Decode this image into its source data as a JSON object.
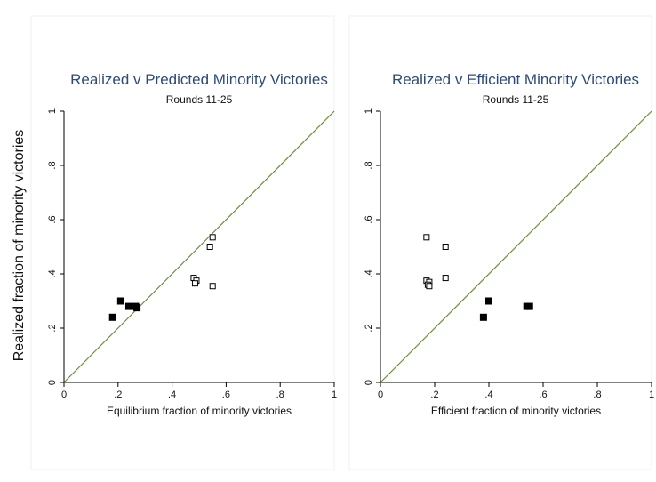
{
  "figure": {
    "ylabel": "Realized fraction of minority victories"
  },
  "chart_data": [
    {
      "type": "scatter",
      "title": "Realized v Predicted Minority Victories",
      "subtitle": "Rounds 11-25",
      "xlabel": "Equilibrium fraction of minority victories",
      "ylabel": "Realized fraction of minority victories",
      "xlim": [
        0,
        1
      ],
      "ylim": [
        0,
        1
      ],
      "x_ticks": [
        0,
        0.2,
        0.4,
        0.6,
        0.8,
        1
      ],
      "x_tick_labels": [
        "0",
        ".2",
        ".4",
        ".6",
        ".8",
        "1"
      ],
      "y_ticks": [
        0,
        0.2,
        0.4,
        0.6,
        0.8,
        1
      ],
      "y_tick_labels": [
        "0",
        ".2",
        ".4",
        ".6",
        ".8",
        "1"
      ],
      "grid": false,
      "reference_line": {
        "from": [
          0,
          0
        ],
        "to": [
          1,
          1
        ],
        "color": "#6b8f3a"
      },
      "series": [
        {
          "marker": "filled-square",
          "points": [
            {
              "x": 0.18,
              "y": 0.24
            },
            {
              "x": 0.21,
              "y": 0.3
            },
            {
              "x": 0.24,
              "y": 0.28
            },
            {
              "x": 0.265,
              "y": 0.28
            },
            {
              "x": 0.27,
              "y": 0.275
            }
          ]
        },
        {
          "marker": "hollow-square",
          "points": [
            {
              "x": 0.48,
              "y": 0.385
            },
            {
              "x": 0.49,
              "y": 0.375
            },
            {
              "x": 0.485,
              "y": 0.365
            },
            {
              "x": 0.54,
              "y": 0.5
            },
            {
              "x": 0.55,
              "y": 0.535
            },
            {
              "x": 0.55,
              "y": 0.355
            }
          ]
        }
      ]
    },
    {
      "type": "scatter",
      "title": "Realized v Efficient Minority Victories",
      "subtitle": "Rounds 11-25",
      "xlabel": "Efficient fraction of minority victories",
      "ylabel": "",
      "xlim": [
        0,
        1
      ],
      "ylim": [
        0,
        1
      ],
      "x_ticks": [
        0,
        0.2,
        0.4,
        0.6,
        0.8,
        1
      ],
      "x_tick_labels": [
        "0",
        ".2",
        ".4",
        ".6",
        ".8",
        "1"
      ],
      "y_ticks": [
        0,
        0.2,
        0.4,
        0.6,
        0.8,
        1
      ],
      "y_tick_labels": [
        "0",
        ".2",
        ".4",
        ".6",
        ".8",
        "1"
      ],
      "grid": false,
      "reference_line": {
        "from": [
          0,
          0
        ],
        "to": [
          1,
          1
        ],
        "color": "#6b8f3a"
      },
      "series": [
        {
          "marker": "filled-square",
          "points": [
            {
              "x": 0.38,
              "y": 0.24
            },
            {
              "x": 0.4,
              "y": 0.3
            },
            {
              "x": 0.54,
              "y": 0.28
            },
            {
              "x": 0.55,
              "y": 0.28
            }
          ]
        },
        {
          "marker": "hollow-square",
          "points": [
            {
              "x": 0.17,
              "y": 0.535
            },
            {
              "x": 0.24,
              "y": 0.5
            },
            {
              "x": 0.24,
              "y": 0.385
            },
            {
              "x": 0.17,
              "y": 0.375
            },
            {
              "x": 0.18,
              "y": 0.37
            },
            {
              "x": 0.175,
              "y": 0.36
            },
            {
              "x": 0.18,
              "y": 0.355
            }
          ]
        }
      ]
    }
  ]
}
